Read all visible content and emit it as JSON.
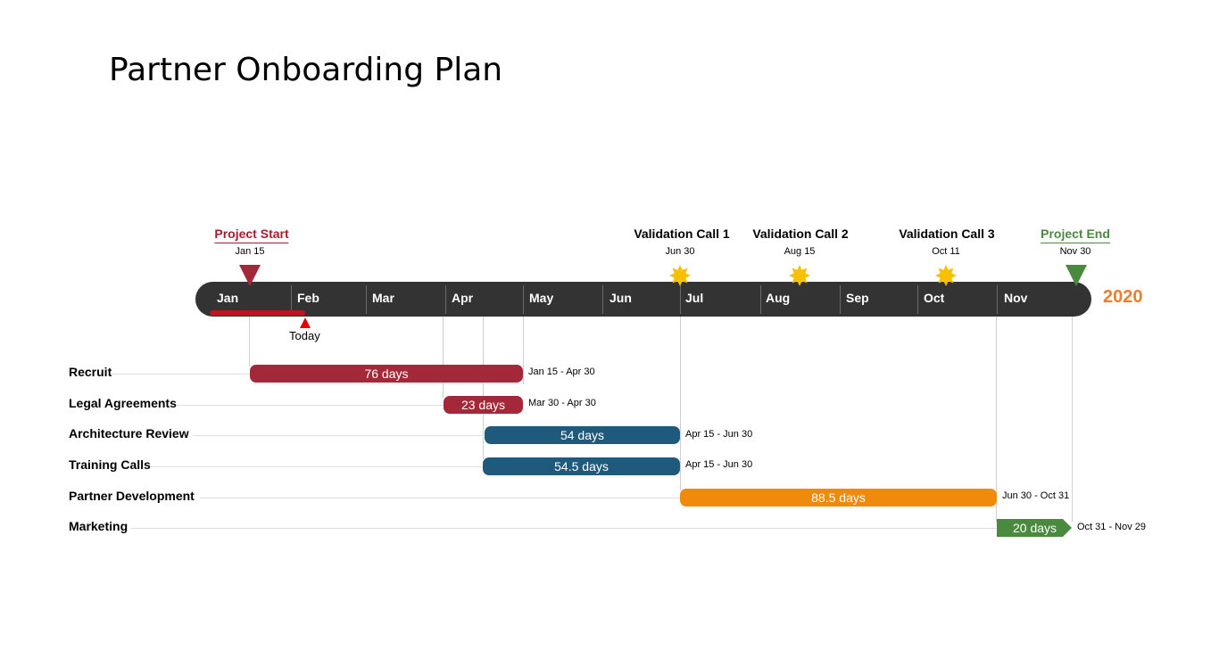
{
  "title": "Partner Onboarding Plan",
  "year": "2020",
  "today_label": "Today",
  "months": [
    "Jan",
    "Feb",
    "Mar",
    "Apr",
    "May",
    "Jun",
    "Jul",
    "Aug",
    "Sep",
    "Oct",
    "Nov"
  ],
  "milestones": [
    {
      "name": "Project Start",
      "date": "Jan 15",
      "color": "#a51c30",
      "shape": "triangle-down"
    },
    {
      "name": "Validation Call 1",
      "date": "Jun 30",
      "color": "#f7c000",
      "shape": "star-burst"
    },
    {
      "name": "Validation Call 2",
      "date": "Aug 15",
      "color": "#f7c000",
      "shape": "star-burst"
    },
    {
      "name": "Validation Call 3",
      "date": "Oct 11",
      "color": "#f7c000",
      "shape": "star-burst"
    },
    {
      "name": "Project End",
      "date": "Nov 30",
      "color": "#4a8a3e",
      "shape": "triangle-down"
    }
  ],
  "tasks": [
    {
      "name": "Recruit",
      "duration": "76 days",
      "range": "Jan 15 - Apr 30",
      "color": "#a3293a"
    },
    {
      "name": "Legal Agreements",
      "duration": "23 days",
      "range": "Mar 30 - Apr 30",
      "color": "#a3293a"
    },
    {
      "name": "Architecture Review",
      "duration": "54 days",
      "range": "Apr 15 - Jun 30",
      "color": "#1f5a7d"
    },
    {
      "name": "Training Calls",
      "duration": "54.5 days",
      "range": "Apr 15 - Jun 30",
      "color": "#1f5a7d"
    },
    {
      "name": "Partner Development",
      "duration": "88.5 days",
      "range": "Jun 30 - Oct 31",
      "color": "#f08a0b"
    },
    {
      "name": "Marketing",
      "duration": "20 days",
      "range": "Oct 31 - Nov 29",
      "color": "#4a8a3e"
    }
  ],
  "colors": {
    "timeline": "#333333",
    "year": "#ee7d2c",
    "today_marker": "#e30000",
    "progress": "#c1121f"
  }
}
